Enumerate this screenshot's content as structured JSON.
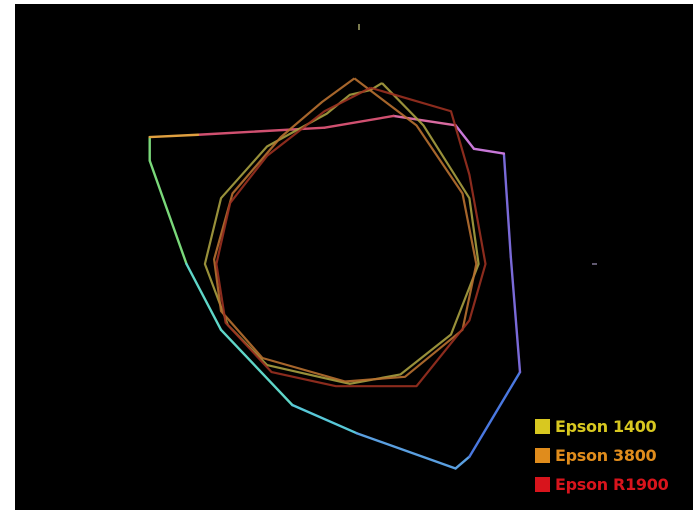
{
  "chart_data": {
    "type": "line",
    "title": "",
    "xlabel": "",
    "ylabel": "",
    "xlim": [
      -100,
      100
    ],
    "ylim": [
      -100,
      100
    ],
    "grid": false,
    "legend_position": "bottom-right",
    "axis_color_colors": {
      "x_axis": [
        "#5fc9c9",
        "#d8c8e8",
        "#b57ad0"
      ],
      "y_axis": [
        "#e0e080",
        "#b0b070",
        "#6b8ad8"
      ]
    },
    "reference_gamut": {
      "points": [
        [
          -91,
          54
        ],
        [
          -91,
          44
        ],
        [
          -75,
          0
        ],
        [
          -60,
          -28
        ],
        [
          -29,
          -60
        ],
        [
          -1,
          -72
        ],
        [
          42,
          -87
        ],
        [
          48,
          -82
        ],
        [
          70,
          -46
        ],
        [
          66,
          3
        ],
        [
          63,
          47
        ],
        [
          50,
          49
        ],
        [
          42,
          59
        ],
        [
          15,
          63
        ],
        [
          -15,
          58
        ],
        [
          -70,
          55
        ],
        [
          -91,
          54
        ]
      ],
      "colors": [
        "#7ad87a",
        "#5fd6c8",
        "#58c8d8",
        "#5a9fe0",
        "#4a78e0",
        "#7a6ad8",
        "#c878d8",
        "#d86aa0",
        "#d05070",
        "#e0a040"
      ]
    },
    "series": [
      {
        "name": "Epson 1400",
        "color": "#d8c820",
        "line_color": "#a8a040",
        "points": [
          [
            10,
            77
          ],
          [
            28,
            59
          ],
          [
            48,
            28
          ],
          [
            52,
            0
          ],
          [
            40,
            -30
          ],
          [
            18,
            -47
          ],
          [
            -4,
            -51
          ],
          [
            -40,
            -43
          ],
          [
            -57,
            -26
          ],
          [
            -67,
            0
          ],
          [
            -60,
            28
          ],
          [
            -40,
            50
          ],
          [
            -14,
            64
          ],
          [
            -4,
            72
          ],
          [
            5,
            74
          ],
          [
            10,
            77
          ]
        ]
      },
      {
        "name": "Epson 3800",
        "color": "#e08c1c",
        "line_color": "#b87030",
        "points": [
          [
            -2,
            79
          ],
          [
            25,
            59
          ],
          [
            45,
            30
          ],
          [
            51,
            0
          ],
          [
            45,
            -28
          ],
          [
            20,
            -48
          ],
          [
            -6,
            -50
          ],
          [
            -42,
            -40
          ],
          [
            -60,
            -20
          ],
          [
            -63,
            2
          ],
          [
            -55,
            30
          ],
          [
            -34,
            54
          ],
          [
            -16,
            69
          ],
          [
            -2,
            79
          ]
        ]
      },
      {
        "name": "Epson R1900",
        "color": "#d8141c",
        "line_color": "#9a3020",
        "points": [
          [
            5,
            75
          ],
          [
            40,
            65
          ],
          [
            48,
            38
          ],
          [
            55,
            0
          ],
          [
            48,
            -24
          ],
          [
            25,
            -52
          ],
          [
            -10,
            -52
          ],
          [
            -38,
            -46
          ],
          [
            -58,
            -25
          ],
          [
            -62,
            0
          ],
          [
            -56,
            26
          ],
          [
            -40,
            46
          ],
          [
            -15,
            65
          ],
          [
            5,
            75
          ]
        ]
      }
    ]
  }
}
